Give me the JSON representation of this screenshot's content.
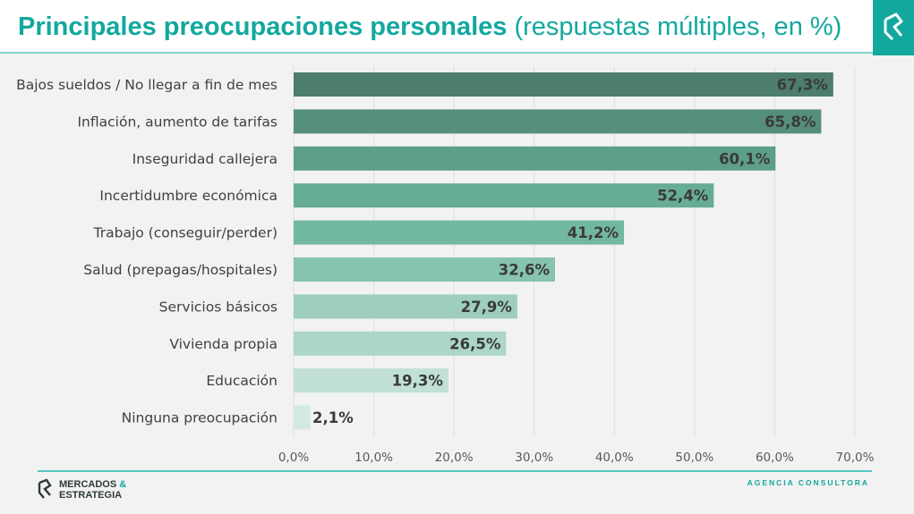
{
  "header": {
    "title_bold": "Principales preocupaciones personales",
    "title_rest": " (respuestas múltiples, en %)"
  },
  "chart_data": {
    "type": "bar",
    "orientation": "horizontal",
    "categories": [
      "Bajos sueldos / No llegar a fin de mes",
      "Inflación, aumento de tarifas",
      "Inseguridad callejera",
      "Incertidumbre económica",
      "Trabajo (conseguir/perder)",
      "Salud (prepagas/hospitales)",
      "Servicios básicos",
      "Vivienda propia",
      "Educación",
      "Ninguna preocupación"
    ],
    "values": [
      67.3,
      65.8,
      60.1,
      52.4,
      41.2,
      32.6,
      27.9,
      26.5,
      19.3,
      2.1
    ],
    "value_labels": [
      "67,3%",
      "65,8%",
      "60,1%",
      "52,4%",
      "41,2%",
      "32,6%",
      "27,9%",
      "26,5%",
      "19,3%",
      "2,1%"
    ],
    "xlim": [
      0,
      70
    ],
    "xticks": [
      0,
      10,
      20,
      30,
      40,
      50,
      60,
      70
    ],
    "xtick_labels": [
      "0,0%",
      "10,0%",
      "20,0%",
      "30,0%",
      "40,0%",
      "50,0%",
      "60,0%",
      "70,0%"
    ],
    "grid": true,
    "colors": [
      "#4c7d6e",
      "#558f7c",
      "#5e9f89",
      "#67ad96",
      "#72b8a0",
      "#86c4ad",
      "#9dcfbc",
      "#acd6c6",
      "#c1e1d4",
      "#d3eae1"
    ]
  },
  "footer": {
    "brand_line1": "MERCADOS",
    "brand_amp": "&",
    "brand_line2": "ESTRATEGIA",
    "tagline": "AGENCIA CONSULTORA"
  },
  "colors": {
    "accent": "#13a89e"
  }
}
